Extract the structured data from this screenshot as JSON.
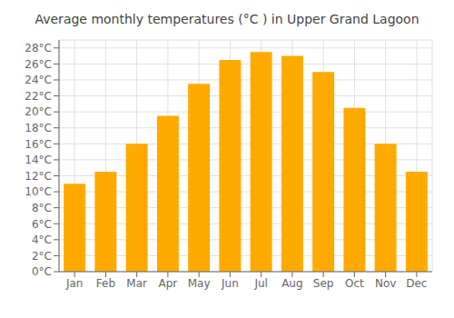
{
  "chart_data": {
    "type": "bar",
    "title": "Average monthly temperatures (°C ) in Upper Grand Lagoon",
    "categories": [
      "Jan",
      "Feb",
      "Mar",
      "Apr",
      "May",
      "Jun",
      "Jul",
      "Aug",
      "Sep",
      "Oct",
      "Nov",
      "Dec"
    ],
    "values": [
      11,
      12.5,
      16,
      19.5,
      23.5,
      26.5,
      27.5,
      27,
      25,
      20.5,
      16,
      12.5
    ],
    "color": "#FFAA00",
    "ylim": [
      0,
      29
    ],
    "yticks": [
      {
        "value": 0,
        "label": "0°C"
      },
      {
        "value": 2,
        "label": "2°C"
      },
      {
        "value": 4,
        "label": "4°C"
      },
      {
        "value": 6,
        "label": "6°C"
      },
      {
        "value": 8,
        "label": "8°C"
      },
      {
        "value": 10,
        "label": "10°C"
      },
      {
        "value": 12,
        "label": "12°C"
      },
      {
        "value": 14,
        "label": "14°C"
      },
      {
        "value": 16,
        "label": "16°C"
      },
      {
        "value": 18,
        "label": "18°C"
      },
      {
        "value": 20,
        "label": "20°C"
      },
      {
        "value": 22,
        "label": "22°C"
      },
      {
        "value": 24,
        "label": "24°C"
      },
      {
        "value": 26,
        "label": "26°C"
      },
      {
        "value": 28,
        "label": "28°C"
      }
    ],
    "grid": true
  }
}
